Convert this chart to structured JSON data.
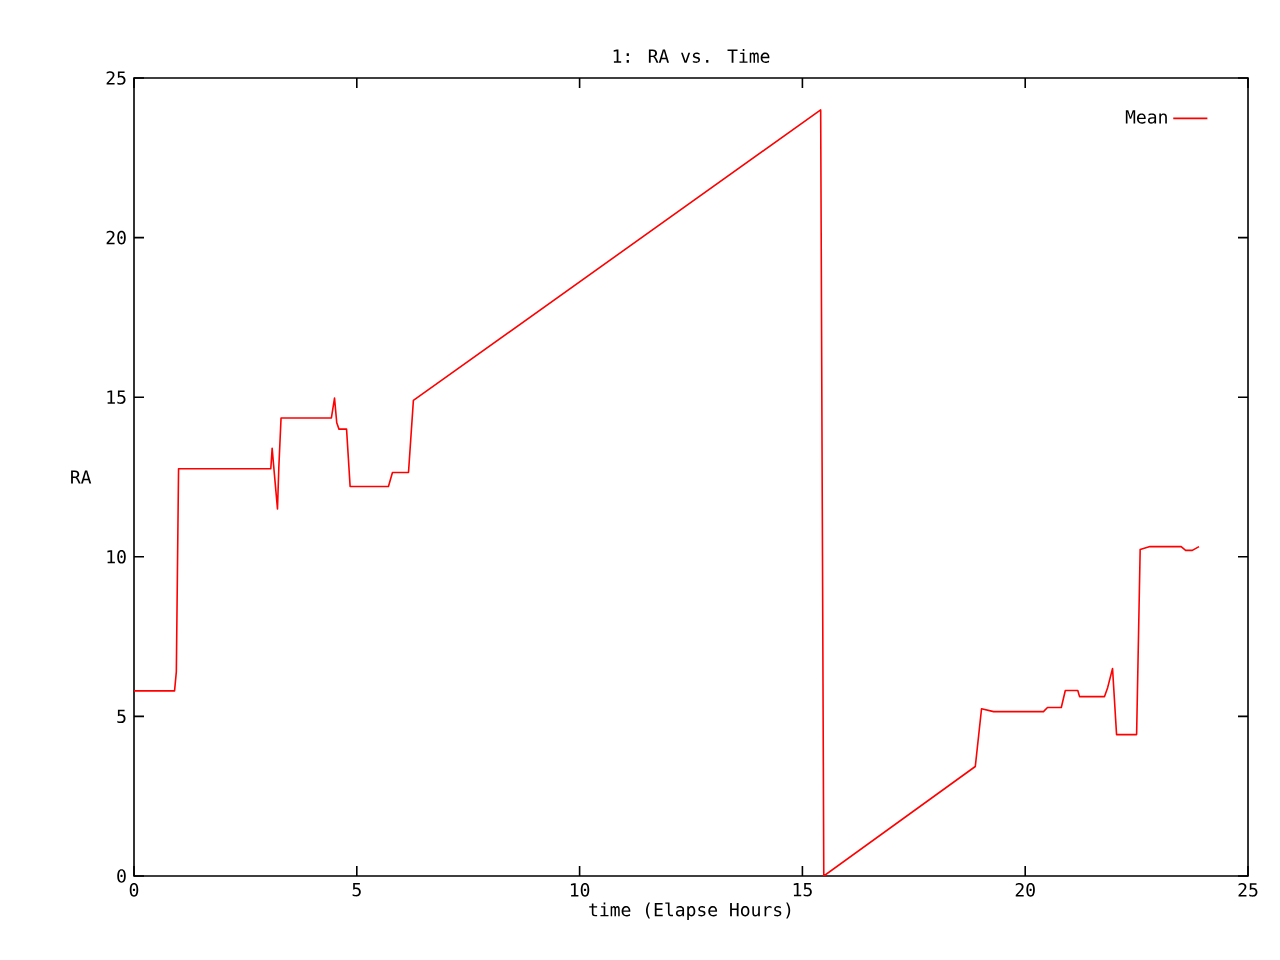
{
  "chart_data": {
    "type": "line",
    "title": "1: RA vs. Time",
    "xlabel": "time (Elapse Hours)",
    "ylabel": "RA",
    "xlim": [
      0,
      25
    ],
    "ylim": [
      0,
      25
    ],
    "xticks": [
      0,
      5,
      10,
      15,
      20,
      25
    ],
    "yticks": [
      0,
      5,
      10,
      15,
      20,
      25
    ],
    "grid": false,
    "legend": "top right",
    "marker": "none",
    "line_style": "solid",
    "series": [
      {
        "name": "Mean",
        "color": "#ff0000",
        "x": [
          0,
          0.91,
          0.95,
          1.0,
          3.07,
          3.1,
          3.15,
          3.22,
          3.25,
          3.3,
          4.43,
          4.5,
          4.55,
          4.6,
          4.77,
          4.85,
          5.71,
          5.8,
          6.16,
          6.27,
          15.41,
          15.48,
          18.88,
          19.02,
          19.29,
          20.41,
          20.5,
          20.81,
          20.9,
          21.18,
          21.22,
          21.78,
          21.85,
          21.96,
          22.05,
          22.5,
          22.58,
          22.8,
          23.5,
          23.6,
          23.75,
          23.9
        ],
        "values": [
          5.8,
          5.8,
          6.4,
          12.76,
          12.76,
          13.4,
          12.6,
          11.5,
          12.8,
          14.35,
          14.35,
          14.97,
          14.2,
          14.0,
          14.0,
          12.2,
          12.2,
          12.64,
          12.64,
          14.9,
          24.0,
          0,
          3.43,
          5.24,
          5.15,
          5.15,
          5.28,
          5.28,
          5.81,
          5.81,
          5.62,
          5.62,
          5.9,
          6.5,
          4.43,
          4.43,
          10.23,
          10.32,
          10.32,
          10.2,
          10.2,
          10.32
        ]
      }
    ]
  }
}
